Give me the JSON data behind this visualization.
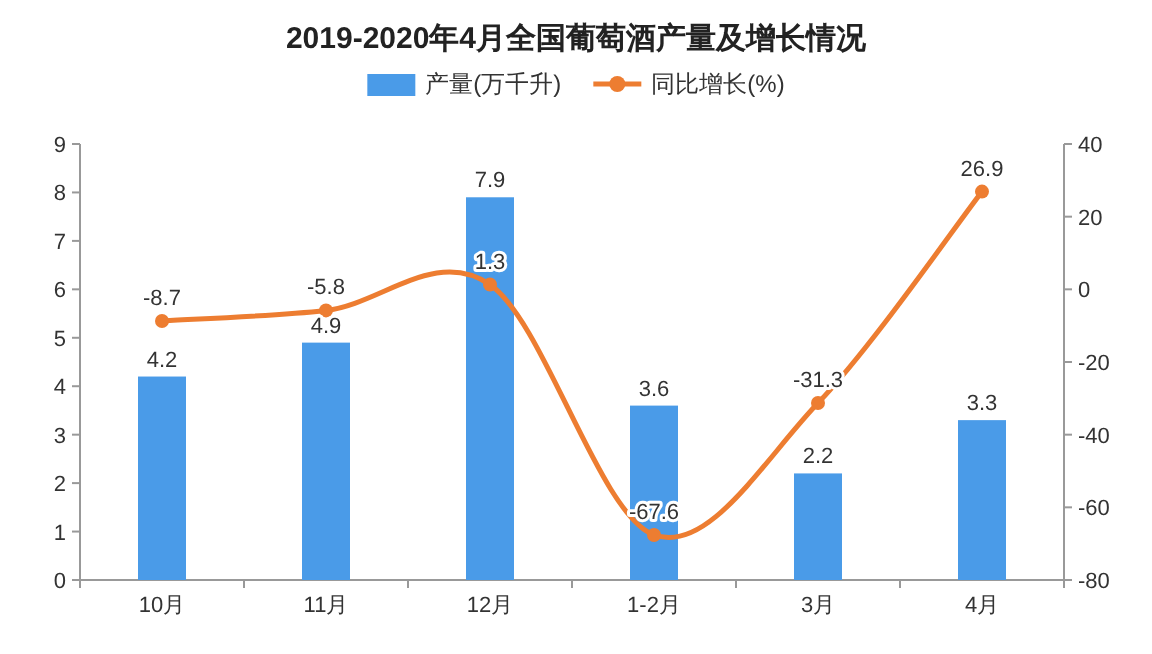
{
  "chart_data": {
    "type": "bar",
    "title": "2019-2020年4月全国葡萄酒产量及增长情况",
    "categories": [
      "10月",
      "11月",
      "12月",
      "1-2月",
      "3月",
      "4月"
    ],
    "series": [
      {
        "name": "产量(万千升)",
        "color": "#4a9be8",
        "values": [
          4.2,
          4.9,
          7.9,
          3.6,
          2.2,
          3.3
        ]
      },
      {
        "name": "同比增长(%)",
        "type": "line",
        "axis": "y2",
        "color": "#ed7d31",
        "values": [
          -8.7,
          -5.8,
          1.3,
          -67.6,
          -31.3,
          26.9
        ]
      }
    ],
    "ylim": [
      0,
      9
    ],
    "yticks": [
      0,
      1,
      2,
      3,
      4,
      5,
      6,
      7,
      8,
      9
    ],
    "y2lim": [
      -80,
      40
    ],
    "y2ticks": [
      -80,
      -60,
      -40,
      -20,
      0,
      20,
      40
    ],
    "legend": "top",
    "data_labels": true,
    "marker": "circle"
  }
}
